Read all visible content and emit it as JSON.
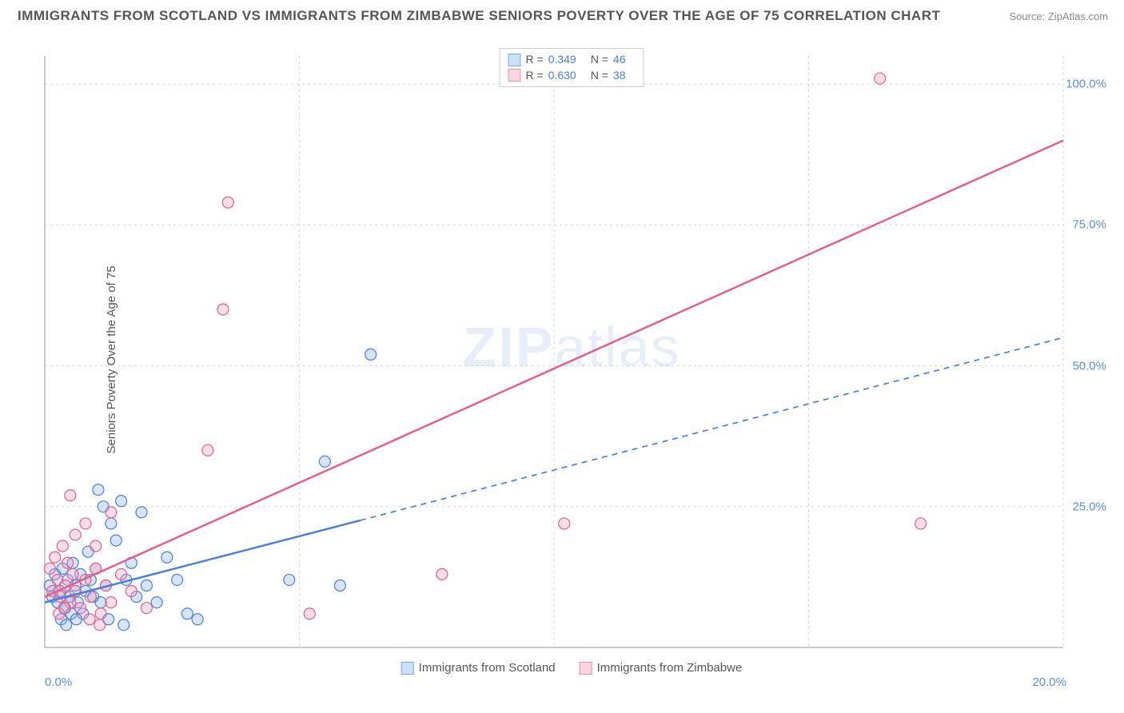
{
  "header": {
    "title": "IMMIGRANTS FROM SCOTLAND VS IMMIGRANTS FROM ZIMBABWE SENIORS POVERTY OVER THE AGE OF 75 CORRELATION CHART",
    "source": "Source: ZipAtlas.com"
  },
  "watermark": {
    "bold": "ZIP",
    "thin": "atlas"
  },
  "chart": {
    "type": "scatter",
    "ylabel": "Seniors Poverty Over the Age of 75",
    "xlim": [
      0,
      20
    ],
    "ylim": [
      0,
      105
    ],
    "xticks": [
      {
        "v": 0,
        "label": "0.0%"
      },
      {
        "v": 20,
        "label": "20.0%"
      }
    ],
    "yticks": [
      {
        "v": 25,
        "label": "25.0%"
      },
      {
        "v": 50,
        "label": "50.0%"
      },
      {
        "v": 75,
        "label": "75.0%"
      },
      {
        "v": 100,
        "label": "100.0%"
      }
    ],
    "xgrid": [
      0,
      5,
      10,
      15,
      20
    ],
    "ygrid": [
      25,
      50,
      75,
      100
    ],
    "background_color": "#ffffff",
    "grid_color": "#d8d8d8",
    "axis_color": "#bbbbbb",
    "tick_label_color": "#5a8fd8",
    "label_fontsize": 15,
    "marker_radius": 7,
    "marker_stroke_width": 1.2,
    "trend_line_width": 2.5,
    "series": [
      {
        "name": "Immigrants from Scotland",
        "fill_color": "rgba(137,178,230,0.35)",
        "stroke_color": "#4a7fd8",
        "swatch_fill": "#cde0f5",
        "swatch_border": "#7aa8e0",
        "r": "0.349",
        "n": "46",
        "trend": {
          "x1": 0,
          "y1": 8,
          "x2": 20,
          "y2": 55,
          "solid_until_x": 6.2
        },
        "points": [
          [
            0.1,
            11
          ],
          [
            0.15,
            9
          ],
          [
            0.2,
            13
          ],
          [
            0.25,
            8
          ],
          [
            0.3,
            10
          ],
          [
            0.35,
            14
          ],
          [
            0.4,
            7
          ],
          [
            0.45,
            12
          ],
          [
            0.5,
            9
          ],
          [
            0.55,
            15
          ],
          [
            0.6,
            11
          ],
          [
            0.65,
            8
          ],
          [
            0.7,
            13
          ],
          [
            0.75,
            6
          ],
          [
            0.8,
            10
          ],
          [
            0.85,
            17
          ],
          [
            0.9,
            12
          ],
          [
            0.95,
            9
          ],
          [
            1.0,
            14
          ],
          [
            1.1,
            8
          ],
          [
            1.2,
            11
          ],
          [
            1.3,
            22
          ],
          [
            1.4,
            19
          ],
          [
            1.5,
            26
          ],
          [
            1.6,
            12
          ],
          [
            1.7,
            15
          ],
          [
            1.8,
            9
          ],
          [
            1.9,
            24
          ],
          [
            2.0,
            11
          ],
          [
            2.2,
            8
          ],
          [
            2.4,
            16
          ],
          [
            2.6,
            12
          ],
          [
            2.8,
            6
          ],
          [
            3.0,
            5
          ],
          [
            1.05,
            28
          ],
          [
            1.15,
            25
          ],
          [
            6.4,
            52
          ],
          [
            5.5,
            33
          ],
          [
            4.8,
            12
          ],
          [
            5.8,
            11
          ],
          [
            0.32,
            5
          ],
          [
            0.42,
            4
          ],
          [
            0.52,
            6
          ],
          [
            0.62,
            5
          ],
          [
            1.25,
            5
          ],
          [
            1.55,
            4
          ]
        ]
      },
      {
        "name": "Immigrants from Zimbabwe",
        "fill_color": "rgba(240,160,185,0.35)",
        "stroke_color": "#e06090",
        "swatch_fill": "#f8d5e0",
        "swatch_border": "#e890b0",
        "r": "0.630",
        "n": "38",
        "trend": {
          "x1": 0,
          "y1": 9,
          "x2": 20,
          "y2": 90,
          "solid_until_x": 20
        },
        "points": [
          [
            0.1,
            14
          ],
          [
            0.15,
            10
          ],
          [
            0.2,
            16
          ],
          [
            0.25,
            12
          ],
          [
            0.3,
            9
          ],
          [
            0.35,
            18
          ],
          [
            0.4,
            11
          ],
          [
            0.45,
            15
          ],
          [
            0.5,
            8
          ],
          [
            0.55,
            13
          ],
          [
            0.6,
            10
          ],
          [
            0.7,
            7
          ],
          [
            0.8,
            12
          ],
          [
            0.9,
            9
          ],
          [
            1.0,
            14
          ],
          [
            1.1,
            6
          ],
          [
            1.2,
            11
          ],
          [
            1.3,
            8
          ],
          [
            1.5,
            13
          ],
          [
            1.7,
            10
          ],
          [
            2.0,
            7
          ],
          [
            0.5,
            27
          ],
          [
            0.6,
            20
          ],
          [
            0.8,
            22
          ],
          [
            1.0,
            18
          ],
          [
            1.3,
            24
          ],
          [
            3.5,
            60
          ],
          [
            3.6,
            79
          ],
          [
            3.2,
            35
          ],
          [
            5.2,
            6
          ],
          [
            7.8,
            13
          ],
          [
            10.2,
            22
          ],
          [
            16.4,
            101
          ],
          [
            17.2,
            22
          ],
          [
            0.28,
            6
          ],
          [
            0.38,
            7
          ],
          [
            0.88,
            5
          ],
          [
            1.08,
            4
          ]
        ]
      }
    ]
  }
}
